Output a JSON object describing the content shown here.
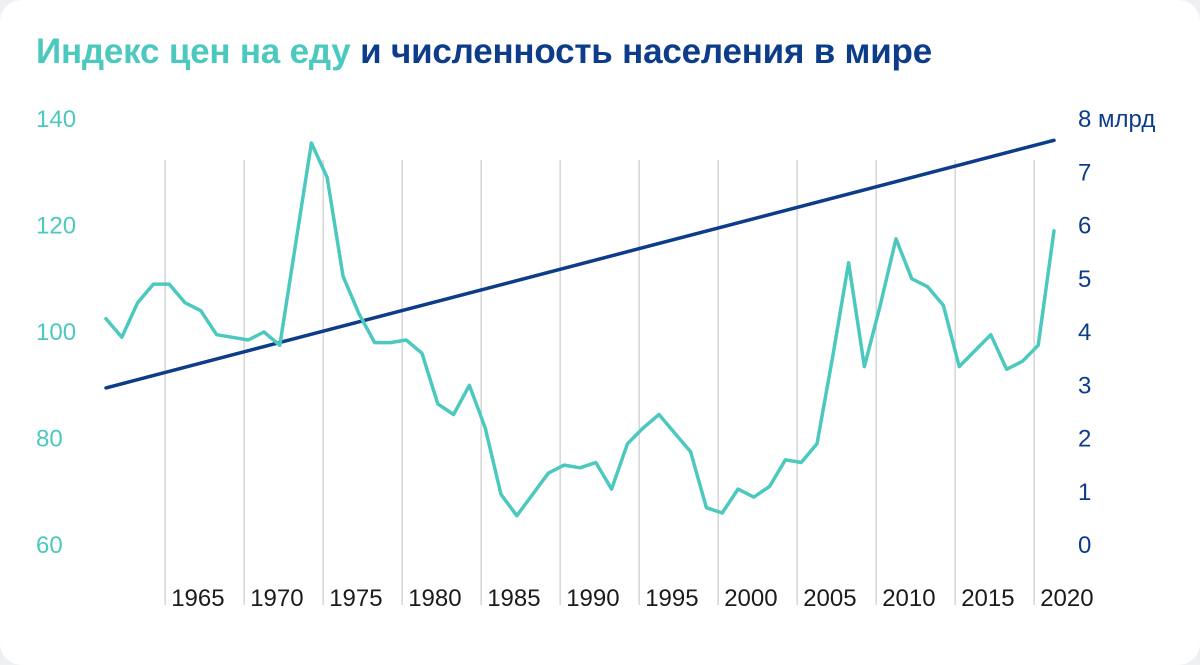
{
  "title": {
    "part1": "Индекс цен на еду",
    "part2": "и численность населения в мире"
  },
  "colors": {
    "food_index": "#4cc9bf",
    "population": "#0d3d8a",
    "grid": "#d6d6d6"
  },
  "chart_data": {
    "type": "line",
    "title": "Индекс цен на еду и численность населения в мире",
    "x_range": [
      1961,
      2021
    ],
    "y_left": {
      "range": [
        60,
        140
      ],
      "ticks": [
        "60",
        "80",
        "100",
        "120",
        "140"
      ]
    },
    "y_right": {
      "range": [
        0,
        8
      ],
      "ticks": [
        "0",
        "1",
        "2",
        "3",
        "4",
        "5",
        "6",
        "7",
        "8 млрд"
      ]
    },
    "x_ticks": [
      "1965",
      "1970",
      "1975",
      "1980",
      "1985",
      "1990",
      "1995",
      "2000",
      "2005",
      "2010",
      "2015",
      "2020"
    ],
    "x_tick_values": [
      1965,
      1970,
      1975,
      1980,
      1985,
      1990,
      1995,
      2000,
      2005,
      2010,
      2015,
      2020
    ],
    "grid": "vertical",
    "series": [
      {
        "axis": "left",
        "x": [
          1961,
          1962,
          1963,
          1964,
          1965,
          1966,
          1967,
          1968,
          1969,
          1970,
          1971,
          1972,
          1973,
          1974,
          1975,
          1976,
          1977,
          1978,
          1979,
          1980,
          1981,
          1982,
          1983,
          1984,
          1985,
          1986,
          1987,
          1988,
          1989,
          1990,
          1991,
          1992,
          1993,
          1994,
          1995,
          1996,
          1997,
          1998,
          1999,
          2000,
          2001,
          2002,
          2003,
          2004,
          2005,
          2006,
          2007,
          2008,
          2009,
          2010,
          2011,
          2012,
          2013,
          2014,
          2015,
          2016,
          2017,
          2018,
          2019,
          2020,
          2021
        ],
        "values": [
          102.5,
          99,
          105.5,
          109,
          109,
          105.5,
          104,
          99.5,
          99,
          98.5,
          100,
          97.5,
          116.5,
          135.5,
          129,
          110.5,
          103.5,
          98,
          98,
          98.5,
          96,
          86.5,
          84.5,
          90,
          82,
          69.5,
          65.5,
          69.5,
          73.5,
          75,
          74.5,
          75.5,
          70.5,
          79,
          82,
          84.5,
          81,
          77.5,
          67,
          66,
          70.5,
          69,
          71,
          76,
          75.5,
          79,
          95.5,
          113,
          93.5,
          105,
          117.5,
          110,
          108.5,
          105,
          93.5,
          96.5,
          99.5,
          93,
          94.5,
          97.5,
          119
        ]
      },
      {
        "axis": "right",
        "x": [
          1961,
          2021
        ],
        "values": [
          2.95,
          7.6
        ]
      }
    ]
  }
}
